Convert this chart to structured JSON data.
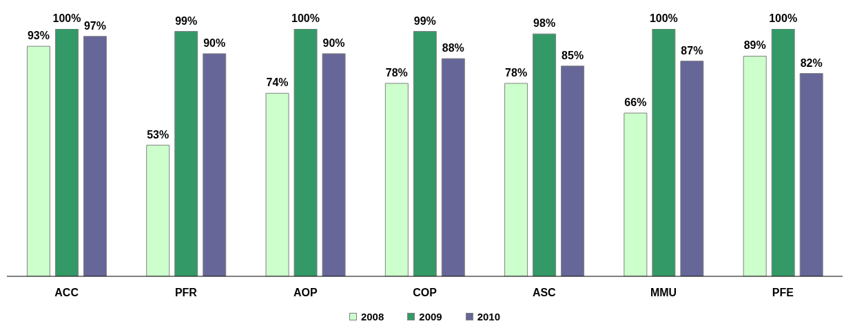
{
  "chart_data": {
    "type": "bar",
    "categories": [
      "ACC",
      "PFR",
      "AOP",
      "COP",
      "ASC",
      "MMU",
      "PFE"
    ],
    "series": [
      {
        "name": "2008",
        "color": "#ccffcc",
        "values": [
          93,
          53,
          74,
          78,
          78,
          66,
          89
        ],
        "value_labels": [
          "93%",
          "53%",
          "74%",
          "78%",
          "78%",
          "66%",
          "89%"
        ]
      },
      {
        "name": "2009",
        "color": "#339966",
        "values": [
          100,
          99,
          100,
          99,
          98,
          100,
          100
        ],
        "value_labels": [
          "100%",
          "99%",
          "100%",
          "99%",
          "98%",
          "100%",
          "100%"
        ]
      },
      {
        "name": "2010",
        "color": "#666699",
        "values": [
          97,
          90,
          90,
          88,
          85,
          87,
          82
        ],
        "value_labels": [
          "97%",
          "90%",
          "90%",
          "88%",
          "85%",
          "87%",
          "82%"
        ]
      }
    ],
    "ylim": [
      0,
      100
    ],
    "tick_labels": "x",
    "grid": false,
    "legend": "bottom"
  }
}
